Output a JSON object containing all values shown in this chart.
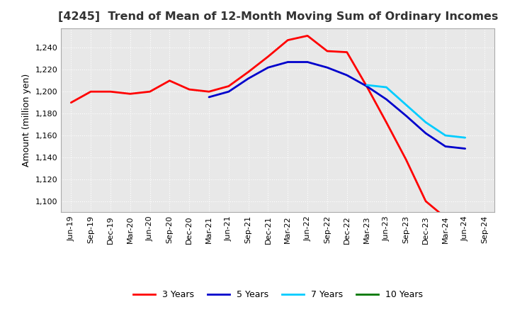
{
  "title": "[4245]  Trend of Mean of 12-Month Moving Sum of Ordinary Incomes",
  "ylabel": "Amount (million yen)",
  "ylim": [
    1090,
    1258
  ],
  "yticks": [
    1100,
    1120,
    1140,
    1160,
    1180,
    1200,
    1220,
    1240
  ],
  "plot_bg_color": "#e8e8e8",
  "fig_bg_color": "#ffffff",
  "grid_color": "#ffffff",
  "title_fontsize": 11.5,
  "axis_fontsize": 9,
  "tick_fontsize": 8,
  "x_labels": [
    "Jun-19",
    "Sep-19",
    "Dec-19",
    "Mar-20",
    "Jun-20",
    "Sep-20",
    "Dec-20",
    "Mar-21",
    "Jun-21",
    "Sep-21",
    "Dec-21",
    "Mar-22",
    "Jun-22",
    "Sep-22",
    "Dec-22",
    "Mar-23",
    "Jun-23",
    "Sep-23",
    "Dec-23",
    "Mar-24",
    "Jun-24",
    "Sep-24"
  ],
  "series": {
    "3 Years": {
      "color": "#ff0000",
      "linewidth": 2.0,
      "values": [
        1190,
        1200,
        1200,
        1198,
        1200,
        1210,
        1202,
        1200,
        1205,
        1218,
        1232,
        1247,
        1251,
        1237,
        1236,
        1205,
        1172,
        1138,
        1100,
        1085,
        null,
        null
      ]
    },
    "5 Years": {
      "color": "#0000cc",
      "linewidth": 2.0,
      "values": [
        null,
        null,
        null,
        null,
        null,
        null,
        null,
        1195,
        1200,
        1212,
        1222,
        1227,
        1227,
        1222,
        1215,
        1205,
        1193,
        1178,
        1162,
        1150,
        1148,
        null
      ]
    },
    "7 Years": {
      "color": "#00ccff",
      "linewidth": 2.0,
      "values": [
        null,
        null,
        null,
        null,
        null,
        null,
        null,
        null,
        null,
        null,
        null,
        null,
        null,
        null,
        null,
        1206,
        1204,
        1188,
        1172,
        1160,
        1158,
        null
      ]
    },
    "10 Years": {
      "color": "#007700",
      "linewidth": 2.0,
      "values": [
        null,
        null,
        null,
        null,
        null,
        null,
        null,
        null,
        null,
        null,
        null,
        null,
        null,
        null,
        null,
        null,
        null,
        null,
        null,
        null,
        null,
        null
      ]
    }
  },
  "legend_labels": [
    "3 Years",
    "5 Years",
    "7 Years",
    "10 Years"
  ],
  "legend_colors": [
    "#ff0000",
    "#0000cc",
    "#00ccff",
    "#007700"
  ]
}
